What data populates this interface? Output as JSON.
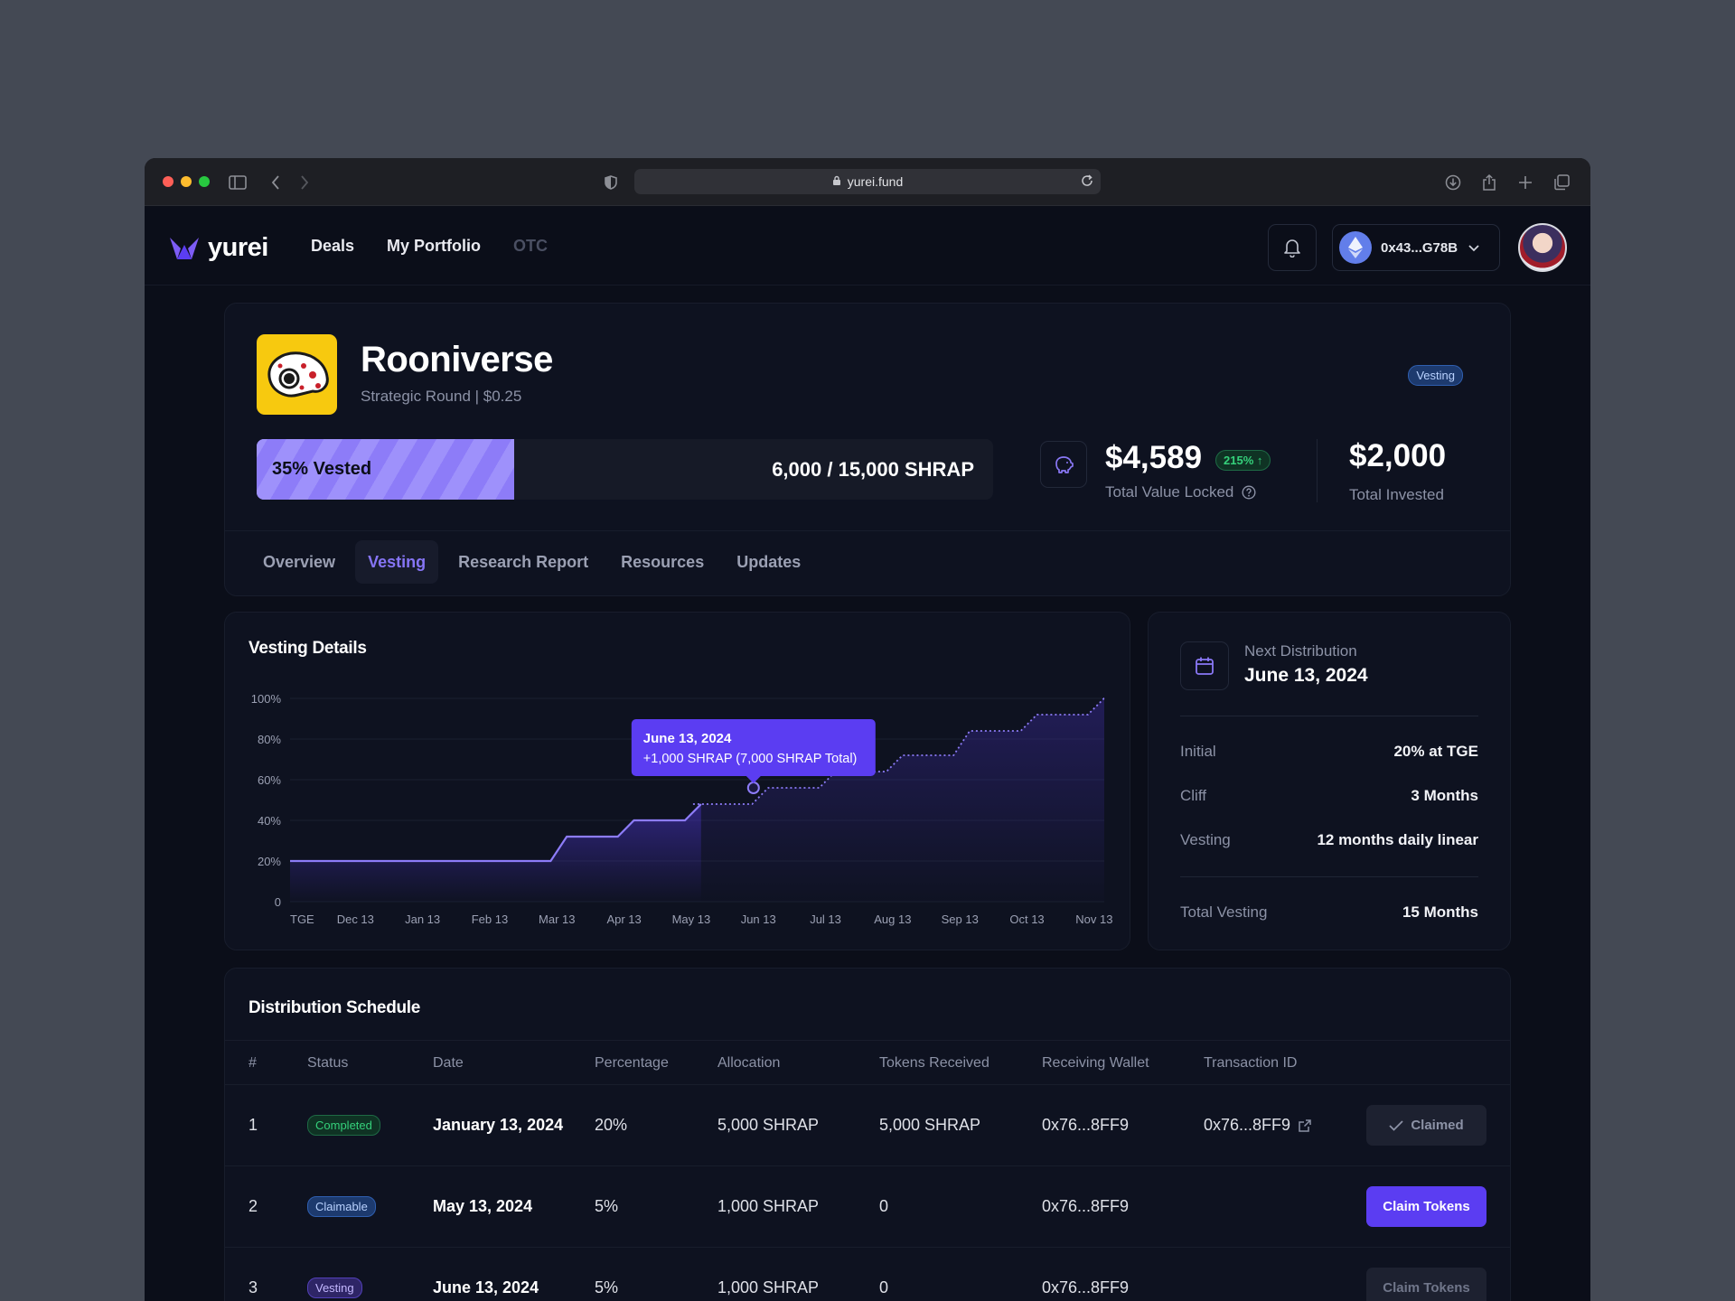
{
  "browser": {
    "url": "yurei.fund"
  },
  "app": {
    "brand": "yurei",
    "nav": [
      {
        "label": "Deals"
      },
      {
        "label": "My Portfolio"
      },
      {
        "label": "OTC"
      }
    ],
    "wallet_address": "0x43...G78B"
  },
  "project": {
    "name": "Rooniverse",
    "subtitle": "Strategic Round | $0.25",
    "status_badge": "Vesting",
    "vested_label": "35% Vested",
    "vested_fraction": 0.35,
    "token_count": "6,000 / 15,000 SHRAP",
    "tvl_value": "$4,589",
    "tvl_change": "215%",
    "tvl_label": "Total Value Locked",
    "invested_value": "$2,000",
    "invested_label": "Total Invested",
    "tabs": [
      {
        "label": "Overview"
      },
      {
        "label": "Vesting"
      },
      {
        "label": "Research Report"
      },
      {
        "label": "Resources"
      },
      {
        "label": "Updates"
      }
    ],
    "active_tab": "Vesting"
  },
  "vesting_details": {
    "title": "Vesting Details",
    "tooltip": {
      "date": "June 13, 2024",
      "text": "+1,000 SHRAP (7,000 SHRAP Total)"
    }
  },
  "chart_data": {
    "type": "line",
    "title": "Vesting Details",
    "categories": [
      "TGE",
      "Dec 13",
      "Jan 13",
      "Feb 13",
      "Mar 13",
      "Apr 13",
      "May 13",
      "Jun 13",
      "Jul 13",
      "Aug 13",
      "Sep 13",
      "Oct 13",
      "Nov 13"
    ],
    "y_ticks": [
      "0",
      "20%",
      "40%",
      "60%",
      "80%",
      "100%"
    ],
    "ylim": [
      0,
      100
    ],
    "series": [
      {
        "values": [
          20,
          20,
          20,
          20,
          32,
          40,
          48,
          56,
          64,
          72,
          84,
          92,
          100
        ],
        "dashed_from_index": 6
      }
    ],
    "highlight_index": 7,
    "grid": true
  },
  "next_distribution": {
    "label": "Next Distribution",
    "date": "June 13, 2024",
    "rows": [
      {
        "key": "Initial",
        "value": "20% at TGE"
      },
      {
        "key": "Cliff",
        "value": "3 Months"
      },
      {
        "key": "Vesting",
        "value": "12 months daily linear"
      }
    ],
    "total": {
      "key": "Total Vesting",
      "value": "15 Months"
    }
  },
  "schedule": {
    "title": "Distribution Schedule",
    "columns": [
      "#",
      "Status",
      "Date",
      "Percentage",
      "Allocation",
      "Tokens Received",
      "Receiving Wallet",
      "Transaction ID"
    ],
    "rows": [
      {
        "num": "1",
        "status": "Completed",
        "date": "January 13, 2024",
        "pct": "20%",
        "allocation": "5,000 SHRAP",
        "received": "5,000 SHRAP",
        "wallet": "0x76...8FF9",
        "txid": "0x76...8FF9",
        "action": "Claimed"
      },
      {
        "num": "2",
        "status": "Claimable",
        "date": "May 13, 2024",
        "pct": "5%",
        "allocation": "1,000 SHRAP",
        "received": "0",
        "wallet": "0x76...8FF9",
        "txid": "",
        "action": "Claim Tokens"
      },
      {
        "num": "3",
        "status": "Vesting",
        "date": "June 13, 2024",
        "pct": "5%",
        "allocation": "1,000 SHRAP",
        "received": "0",
        "wallet": "0x76...8FF9",
        "txid": "",
        "action": "Claim Tokens"
      }
    ]
  },
  "colors": {
    "accent": "#5b3df2",
    "accent_light": "#8d7cf8",
    "success": "#35d17b",
    "background": "#0b0e19"
  }
}
